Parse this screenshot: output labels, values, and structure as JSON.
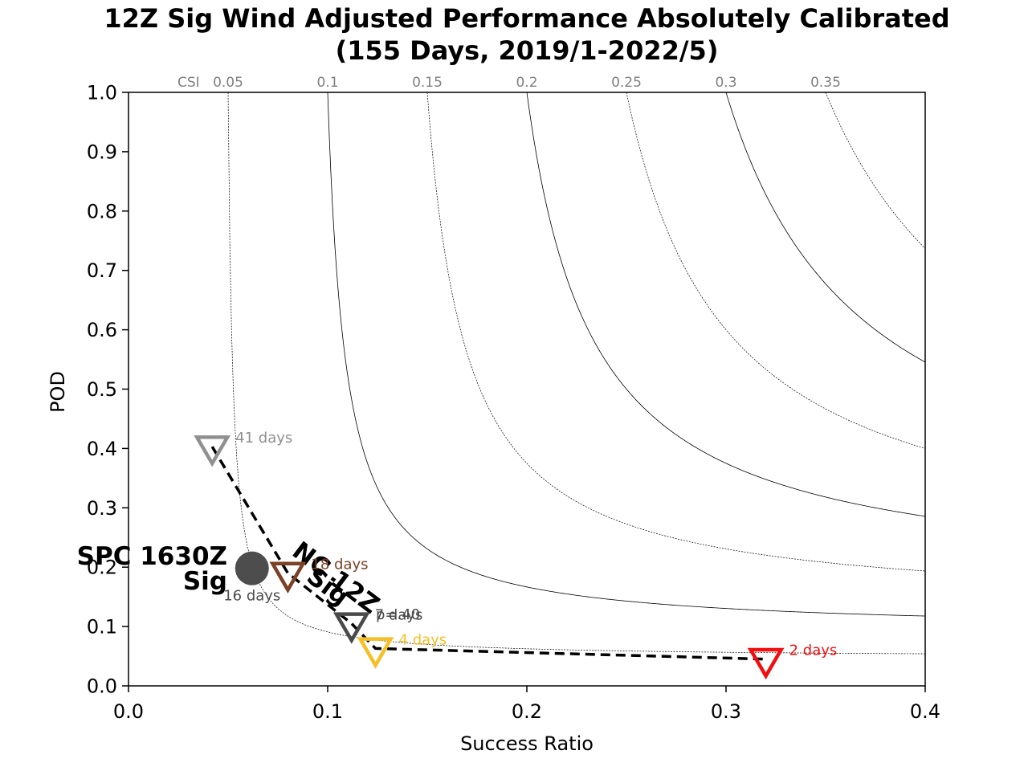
{
  "chart_data": {
    "type": "scatter",
    "title": "12Z Sig Wind Adjusted Performance Absolutely Calibrated",
    "subtitle": "(155 Days, 2019/1-2022/5)",
    "xlabel": "Success Ratio",
    "ylabel": "POD",
    "xlim": [
      0.0,
      0.4
    ],
    "ylim": [
      0.0,
      1.0
    ],
    "x_ticks": [
      "0.0",
      "0.1",
      "0.2",
      "0.3",
      "0.4"
    ],
    "y_ticks": [
      "0.0",
      "0.1",
      "0.2",
      "0.3",
      "0.4",
      "0.5",
      "0.6",
      "0.7",
      "0.8",
      "0.9",
      "1.0"
    ],
    "grid": false,
    "csi_label": "CSI",
    "csi_contours": [
      {
        "value": 0.05,
        "label": "0.05",
        "style": "dashed"
      },
      {
        "value": 0.1,
        "label": "0.1",
        "style": "solid"
      },
      {
        "value": 0.15,
        "label": "0.15",
        "style": "dashed"
      },
      {
        "value": 0.2,
        "label": "0.2",
        "style": "solid"
      },
      {
        "value": 0.25,
        "label": "0.25",
        "style": "dashed"
      },
      {
        "value": 0.3,
        "label": "0.3",
        "style": "solid"
      },
      {
        "value": 0.35,
        "label": "0.35",
        "style": "dashed"
      }
    ],
    "points": [
      {
        "x": 0.042,
        "y": 0.403,
        "label": "41 days",
        "color": "#909090",
        "marker": "triangle-down"
      },
      {
        "x": 0.08,
        "y": 0.19,
        "label": "18 days",
        "color": "#7b4126",
        "marker": "triangle-down"
      },
      {
        "x": 0.112,
        "y": 0.105,
        "label": "7 days",
        "color": "#4a4a4a",
        "marker": "triangle-down"
      },
      {
        "x": 0.124,
        "y": 0.063,
        "label": "4 days",
        "color": "#f6bf26",
        "marker": "triangle-down"
      },
      {
        "x": 0.32,
        "y": 0.045,
        "label": "2 days",
        "color": "#f01010",
        "marker": "triangle-down"
      }
    ],
    "spc_point": {
      "x": 0.062,
      "y": 0.198,
      "label": "16 days",
      "color": "#4d4d4d",
      "marker": "circle"
    },
    "p_value_label": "p=.40",
    "series_labels": {
      "nc": "NC 12Z",
      "nc_sub": "Sig",
      "spc": "SPC 1630Z",
      "spc_sub": "Sig"
    }
  }
}
